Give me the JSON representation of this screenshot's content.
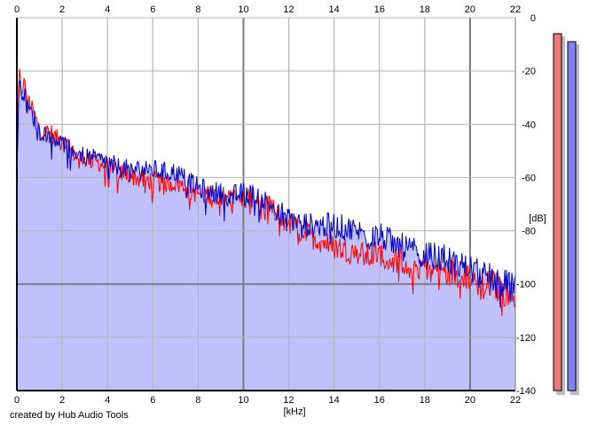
{
  "app": {
    "credit": "created by Hub Audio Tools"
  },
  "colors": {
    "background": "#ffffff",
    "grid": "#b4b4b4",
    "grid_major": "#7a7a7a",
    "axis": "#000000",
    "fill": "#c0c0fc",
    "left_channel": "#ff0000",
    "right_channel": "#0000c8",
    "meter_left": "#f07878",
    "meter_right": "#8080f8"
  },
  "chart_data": {
    "type": "line",
    "title": "",
    "xlabel": "[kHz]",
    "ylabel": "[dB]",
    "xlim": [
      0,
      22
    ],
    "ylim": [
      -140,
      0
    ],
    "x_ticks": [
      "0",
      "2",
      "4",
      "6",
      "8",
      "10",
      "12",
      "14",
      "16",
      "18",
      "20",
      "22"
    ],
    "x_tick_values": [
      0,
      2,
      4,
      6,
      8,
      10,
      12,
      14,
      16,
      18,
      20,
      22
    ],
    "y_ticks": [
      "0",
      "-20",
      "-40",
      "-60",
      "-80",
      "-100",
      "-120",
      "-140"
    ],
    "y_tick_values": [
      0,
      -20,
      -40,
      -60,
      -80,
      -100,
      -120,
      -140
    ],
    "grid": true,
    "series": [
      {
        "color": "#ff0000",
        "x": [
          0,
          0.1,
          0.2,
          0.3,
          0.5,
          0.75,
          1,
          1.5,
          2,
          2.5,
          3,
          3.5,
          4,
          4.5,
          5,
          5.5,
          6,
          6.5,
          7,
          7.5,
          8,
          8.5,
          9,
          9.5,
          10,
          10.5,
          11,
          11.5,
          12,
          12.5,
          13,
          13.5,
          14,
          14.5,
          15,
          15.5,
          16,
          16.5,
          17,
          17.5,
          18,
          18.5,
          19,
          19.5,
          20,
          20.5,
          21,
          21.5,
          22
        ],
        "values": [
          -55,
          -20,
          -28,
          -24,
          -30,
          -36,
          -42,
          -43,
          -47,
          -51,
          -53,
          -54,
          -56,
          -58,
          -59,
          -61,
          -61,
          -62,
          -62,
          -64,
          -66,
          -66,
          -67,
          -68,
          -68,
          -67,
          -70,
          -74,
          -77,
          -80,
          -82,
          -84,
          -86,
          -87,
          -88,
          -90,
          -88,
          -91,
          -91,
          -94,
          -93,
          -95,
          -95,
          -97,
          -97,
          -101,
          -100,
          -103,
          -105
        ]
      },
      {
        "color": "#0000c8",
        "x": [
          0,
          0.1,
          0.2,
          0.3,
          0.5,
          0.75,
          1,
          1.5,
          2,
          2.5,
          3,
          3.5,
          4,
          4.5,
          5,
          5.5,
          6,
          6.5,
          7,
          7.5,
          8,
          8.5,
          9,
          9.5,
          10,
          10.5,
          11,
          11.5,
          12,
          12.5,
          13,
          13.5,
          14,
          14.5,
          15,
          15.5,
          16,
          16.5,
          17,
          17.5,
          18,
          18.5,
          19,
          19.5,
          20,
          20.5,
          21,
          21.5,
          22
        ],
        "values": [
          -57,
          -24,
          -28,
          -28,
          -33,
          -38,
          -43,
          -44,
          -47,
          -50,
          -52,
          -53,
          -54,
          -56,
          -57,
          -57,
          -57,
          -58,
          -58,
          -61,
          -64,
          -65,
          -66,
          -67,
          -66,
          -67,
          -69,
          -72,
          -75,
          -77,
          -78,
          -78,
          -78,
          -79,
          -80,
          -82,
          -82,
          -84,
          -86,
          -88,
          -89,
          -90,
          -91,
          -93,
          -94,
          -97,
          -98,
          -100,
          -102
        ]
      }
    ],
    "fill_area": true,
    "level_meters": [
      {
        "channel": "left",
        "value": -6,
        "color": "#f07878"
      },
      {
        "channel": "right",
        "value": -9,
        "color": "#8080f8"
      }
    ]
  }
}
